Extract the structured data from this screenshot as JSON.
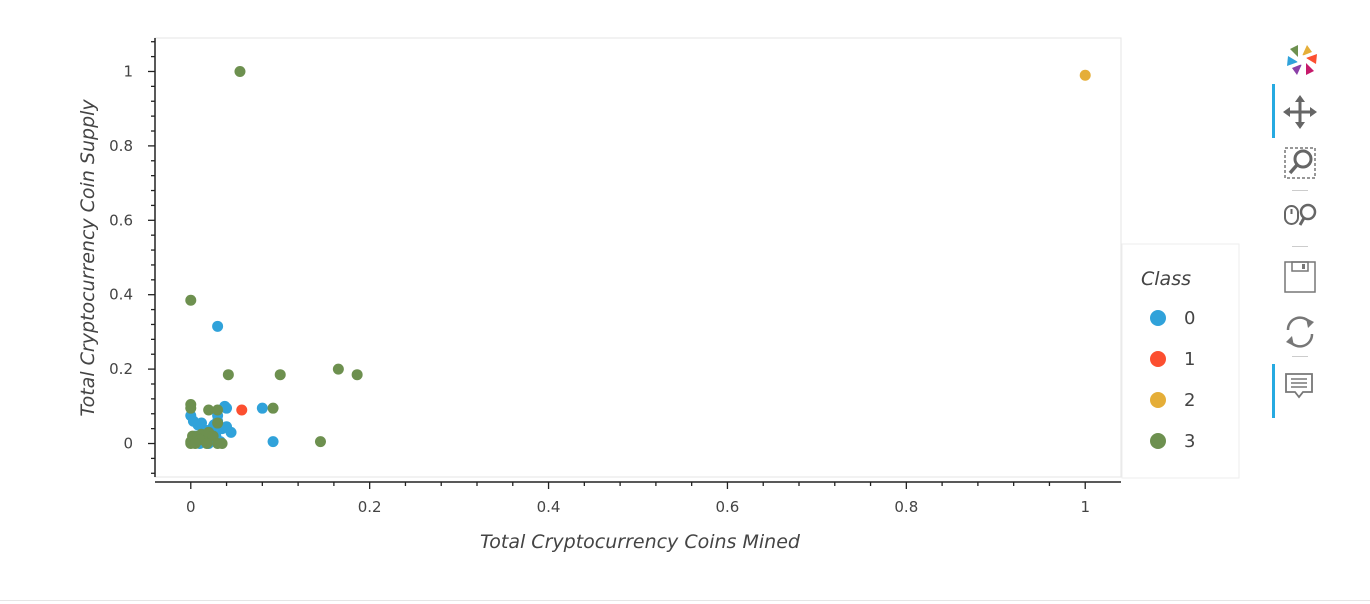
{
  "chart_data": {
    "type": "scatter",
    "xlabel": "Total Cryptocurrency Coins Mined",
    "ylabel": "Total Cryptocurrency Coin Supply",
    "xlim": [
      -0.04,
      1.04
    ],
    "ylim": [
      -0.09,
      1.09
    ],
    "x_ticks": [
      0,
      0.2,
      0.4,
      0.6,
      0.8,
      1
    ],
    "y_ticks": [
      0,
      0.2,
      0.4,
      0.6,
      0.8,
      1
    ],
    "legend": {
      "title": "Class",
      "placement": "right"
    },
    "series": [
      {
        "name": "0",
        "color": "#30a2da",
        "points": [
          [
            0.0,
            0.075
          ],
          [
            0.03,
            0.315
          ],
          [
            0.038,
            0.1
          ],
          [
            0.04,
            0.095
          ],
          [
            0.08,
            0.095
          ],
          [
            0.092,
            0.005
          ],
          [
            0.003,
            0.06
          ],
          [
            0.008,
            0.05
          ],
          [
            0.012,
            0.055
          ],
          [
            0.016,
            0.03
          ],
          [
            0.02,
            0.02
          ],
          [
            0.025,
            0.045
          ],
          [
            0.03,
            0.06
          ],
          [
            0.035,
            0.04
          ],
          [
            0.04,
            0.045
          ],
          [
            0.045,
            0.03
          ],
          [
            0.01,
            0.0
          ],
          [
            0.015,
            0.005
          ],
          [
            0.02,
            0.0
          ],
          [
            0.022,
            0.01
          ],
          [
            0.028,
            0.02
          ],
          [
            0.03,
            0.075
          ],
          [
            0.033,
            0.005
          ],
          [
            0.005,
            0.02
          ],
          [
            0.018,
            0.035
          ],
          [
            0.026,
            0.05
          ]
        ]
      },
      {
        "name": "1",
        "color": "#fc4f30",
        "points": [
          [
            0.057,
            0.09
          ]
        ]
      },
      {
        "name": "2",
        "color": "#e5ae38",
        "points": [
          [
            1.0,
            0.99
          ]
        ]
      },
      {
        "name": "3",
        "color": "#6d904f",
        "points": [
          [
            0.055,
            1.0
          ],
          [
            0.0,
            0.385
          ],
          [
            0.042,
            0.185
          ],
          [
            0.1,
            0.185
          ],
          [
            0.165,
            0.2
          ],
          [
            0.186,
            0.185
          ],
          [
            0.0,
            0.105
          ],
          [
            0.0,
            0.095
          ],
          [
            0.02,
            0.09
          ],
          [
            0.03,
            0.09
          ],
          [
            0.092,
            0.095
          ],
          [
            0.145,
            0.005
          ],
          [
            0.0,
            0.0
          ],
          [
            0.002,
            0.02
          ],
          [
            0.005,
            0.01
          ],
          [
            0.008,
            0.02
          ],
          [
            0.012,
            0.025
          ],
          [
            0.015,
            0.015
          ],
          [
            0.02,
            0.03
          ],
          [
            0.025,
            0.02
          ],
          [
            0.03,
            0.0
          ],
          [
            0.035,
            0.0
          ],
          [
            0.0,
            0.005
          ],
          [
            0.01,
            0.01
          ],
          [
            0.03,
            0.055
          ],
          [
            0.005,
            0.0
          ],
          [
            0.018,
            0.0
          ]
        ]
      }
    ]
  },
  "toolbar": {
    "tools": [
      {
        "name": "logo",
        "icon": "bokeh-logo-icon",
        "active": false
      },
      {
        "name": "pan",
        "icon": "pan-icon",
        "active": true
      },
      {
        "name": "box-zoom",
        "icon": "box-zoom-icon",
        "active": false
      },
      {
        "name": "wheel-zoom",
        "icon": "wheel-zoom-icon",
        "active": false
      },
      {
        "name": "save",
        "icon": "save-icon",
        "active": false
      },
      {
        "name": "reset",
        "icon": "reset-icon",
        "active": false
      },
      {
        "name": "hover",
        "icon": "hover-icon",
        "active": true
      }
    ]
  }
}
